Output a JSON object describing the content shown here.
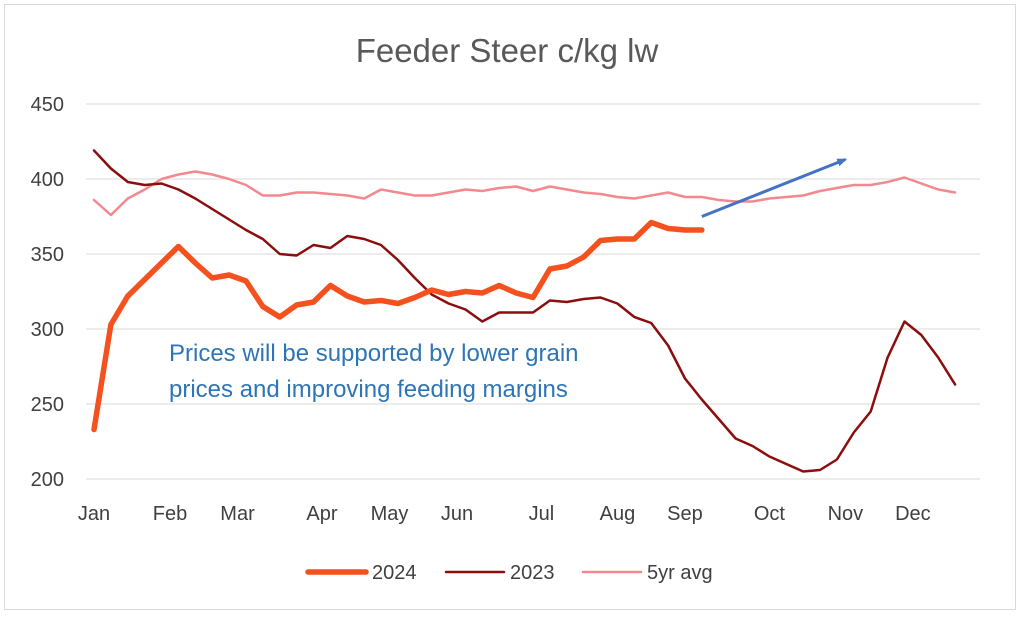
{
  "chart_data": {
    "type": "line",
    "title": "Feeder Steer c/kg lw",
    "xlabel": "",
    "ylabel": "",
    "ylim": [
      200,
      450
    ],
    "yticks": [
      200,
      250,
      300,
      350,
      400,
      450
    ],
    "xlim": [
      0,
      52
    ],
    "x_tick_labels": [
      {
        "label": "Jan",
        "week": 0
      },
      {
        "label": "Feb",
        "week": 4.5
      },
      {
        "label": "Mar",
        "week": 8.5
      },
      {
        "label": "Apr",
        "week": 13.5
      },
      {
        "label": "May",
        "week": 17.5
      },
      {
        "label": "Jun",
        "week": 21.5
      },
      {
        "label": "Jul",
        "week": 26.5
      },
      {
        "label": "Aug",
        "week": 31
      },
      {
        "label": "Sep",
        "week": 35
      },
      {
        "label": "Oct",
        "week": 40
      },
      {
        "label": "Nov",
        "week": 44.5
      },
      {
        "label": "Dec",
        "week": 48.5
      }
    ],
    "grid": true,
    "legend_position": "bottom",
    "series": [
      {
        "name": "2024",
        "color": "#f4511e",
        "x": [
          0,
          1,
          2,
          3,
          4,
          5,
          6,
          7,
          8,
          9,
          10,
          11,
          12,
          13,
          14,
          15,
          16,
          17,
          18,
          19,
          20,
          21,
          22,
          23,
          24,
          25,
          26,
          27,
          28,
          29,
          30,
          31,
          32,
          33,
          34,
          35,
          36
        ],
        "values": [
          233,
          303,
          322,
          333,
          344,
          355,
          344,
          334,
          336,
          332,
          315,
          308,
          316,
          318,
          329,
          322,
          318,
          319,
          317,
          321,
          326,
          323,
          325,
          324,
          329,
          324,
          321,
          340,
          342,
          348,
          359,
          360,
          360,
          371,
          367,
          366,
          366
        ]
      },
      {
        "name": "2023",
        "color": "#8b0d0d",
        "x": [
          0,
          1,
          2,
          3,
          4,
          5,
          6,
          7,
          8,
          9,
          10,
          11,
          12,
          13,
          14,
          15,
          16,
          17,
          18,
          19,
          20,
          21,
          22,
          23,
          24,
          25,
          26,
          27,
          28,
          29,
          30,
          31,
          32,
          33,
          34,
          35,
          36,
          37,
          38,
          39,
          40,
          41,
          42,
          43,
          44,
          45,
          46,
          47,
          48,
          49,
          50,
          51
        ],
        "values": [
          419,
          407,
          398,
          396,
          397,
          393,
          387,
          380,
          373,
          366,
          360,
          350,
          349,
          356,
          354,
          362,
          360,
          356,
          346,
          334,
          323,
          317,
          313,
          305,
          311,
          311,
          311,
          319,
          318,
          320,
          321,
          317,
          308,
          304,
          289,
          267,
          253,
          240,
          227,
          222,
          215,
          210,
          205,
          206,
          213,
          231,
          245,
          281,
          305,
          296,
          281,
          263
        ]
      },
      {
        "name": "5yr avg",
        "color": "#f4888f",
        "x": [
          0,
          1,
          2,
          3,
          4,
          5,
          6,
          7,
          8,
          9,
          10,
          11,
          12,
          13,
          14,
          15,
          16,
          17,
          18,
          19,
          20,
          21,
          22,
          23,
          24,
          25,
          26,
          27,
          28,
          29,
          30,
          31,
          32,
          33,
          34,
          35,
          36,
          37,
          38,
          39,
          40,
          41,
          42,
          43,
          44,
          45,
          46,
          47,
          48,
          49,
          50,
          51
        ],
        "values": [
          386,
          376,
          387,
          393,
          400,
          403,
          405,
          403,
          400,
          396,
          389,
          389,
          391,
          391,
          390,
          389,
          387,
          393,
          391,
          389,
          389,
          391,
          393,
          392,
          394,
          395,
          392,
          395,
          393,
          391,
          390,
          388,
          387,
          389,
          391,
          388,
          388,
          386,
          385,
          385,
          387,
          388,
          389,
          392,
          394,
          396,
          396,
          398,
          401,
          397,
          393,
          391
        ]
      }
    ],
    "annotation": {
      "lines": [
        "Prices will be supported by lower grain",
        "prices and improving feeding margins"
      ],
      "color": "#2e75b6"
    },
    "arrow": {
      "color": "#4472c4",
      "from": {
        "x": 36,
        "y": 375
      },
      "to": {
        "x": 44.5,
        "y": 413
      }
    }
  }
}
